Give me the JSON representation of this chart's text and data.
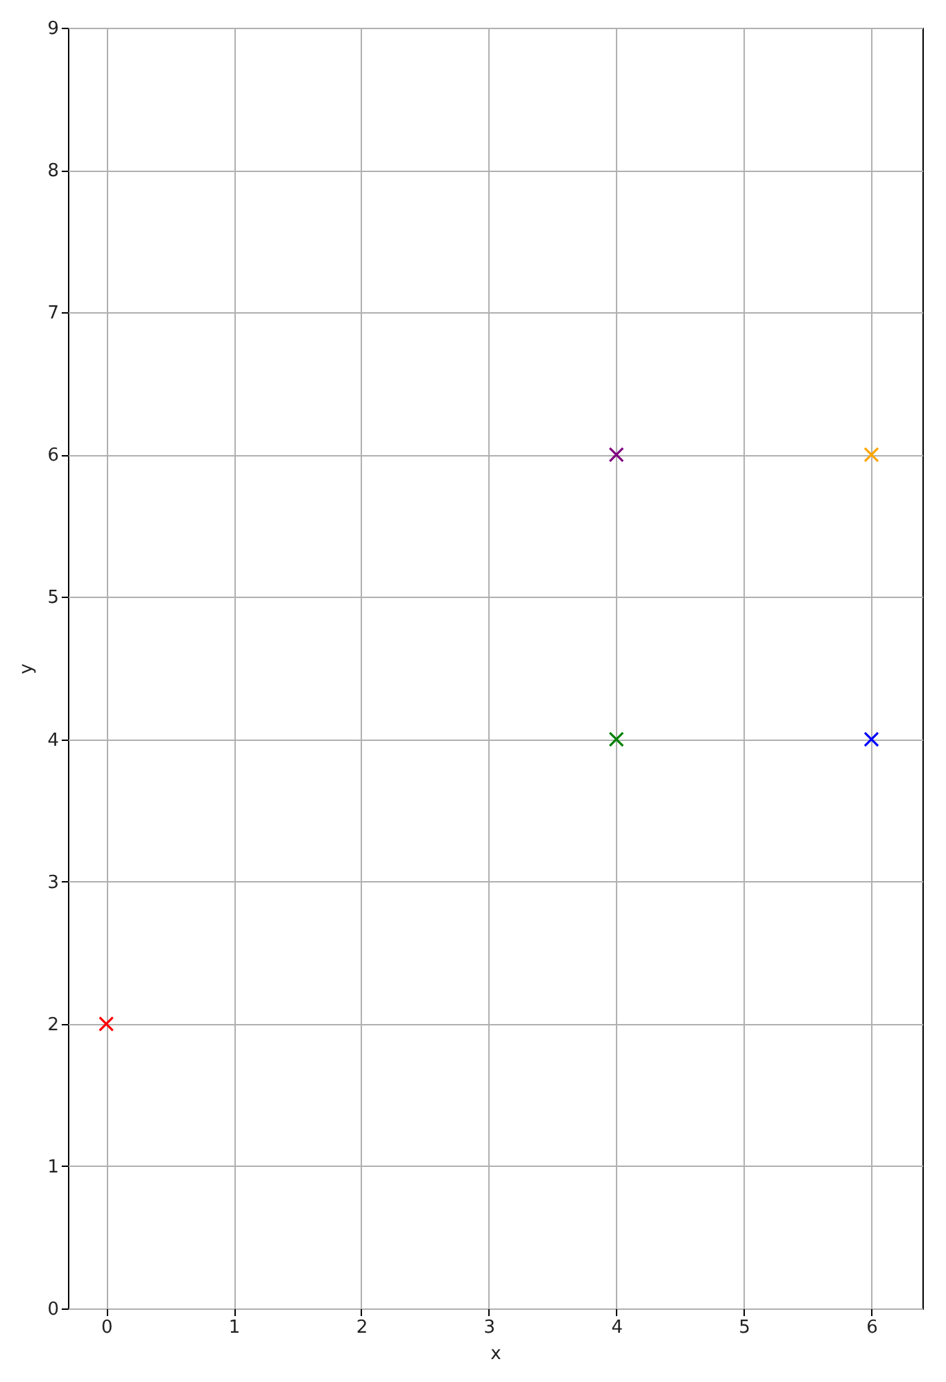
{
  "chart_data": {
    "type": "scatter",
    "xlabel": "x",
    "ylabel": "y",
    "x": [
      0,
      4,
      4,
      6,
      6
    ],
    "values": [
      2,
      6,
      4,
      6,
      4
    ],
    "colors": [
      "#ff0000",
      "#800080",
      "#008000",
      "#ffa500",
      "#0000ff"
    ],
    "xlim": [
      -0.3,
      6.4
    ],
    "ylim": [
      0,
      9
    ],
    "xticks": [
      0,
      1,
      2,
      3,
      4,
      5,
      6
    ],
    "yticks": [
      0,
      1,
      2,
      3,
      4,
      5,
      6,
      7,
      8,
      9
    ],
    "marker": "cross",
    "grid": true
  }
}
